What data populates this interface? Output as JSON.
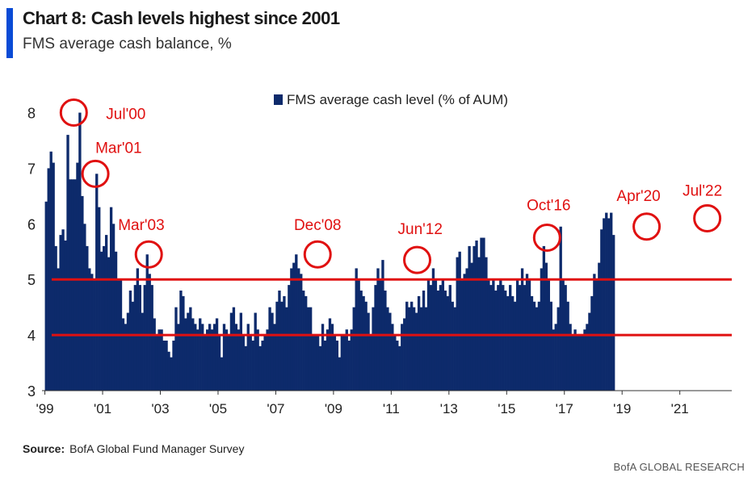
{
  "header": {
    "title": "Chart 8: Cash levels highest since 2001",
    "subtitle": "FMS average cash balance, %"
  },
  "footer": {
    "source_label": "Source:",
    "source_text": "BofA Global Fund Manager Survey",
    "brand": "BofA GLOBAL RESEARCH"
  },
  "colors": {
    "bar": "#0d2a6b",
    "reference_line": "#e01010",
    "annotation": "#e01010"
  },
  "chart_data": {
    "type": "bar",
    "title": "Chart 8: Cash levels highest since 2001",
    "subtitle": "FMS average cash balance, %",
    "legend": {
      "label": "FMS average cash level (% of AUM)",
      "position": "top-center"
    },
    "ylim": [
      3,
      8.4
    ],
    "yticks": [
      3,
      4,
      5,
      6,
      7,
      8
    ],
    "xlim": [
      1998.9,
      2022.8
    ],
    "xticks": [
      {
        "x": 1999,
        "label": "'99"
      },
      {
        "x": 2001,
        "label": "'01"
      },
      {
        "x": 2003,
        "label": "'03"
      },
      {
        "x": 2005,
        "label": "'05"
      },
      {
        "x": 2007,
        "label": "'07"
      },
      {
        "x": 2009,
        "label": "'09"
      },
      {
        "x": 2011,
        "label": "'11"
      },
      {
        "x": 2013,
        "label": "'13"
      },
      {
        "x": 2015,
        "label": "'15"
      },
      {
        "x": 2017,
        "label": "'17"
      },
      {
        "x": 2019,
        "label": "'19"
      },
      {
        "x": 2021,
        "label": "'21"
      }
    ],
    "grid": false,
    "reference_lines": [
      5.0,
      4.0
    ],
    "annotations": [
      {
        "label": "Jul'00",
        "x": 2000.0,
        "y": 8.0
      },
      {
        "label": "Mar'01",
        "x": 2000.75,
        "y": 6.9
      },
      {
        "label": "Mar'03",
        "x": 2002.6,
        "y": 5.45
      },
      {
        "label": "Dec'08",
        "x": 2008.45,
        "y": 5.45
      },
      {
        "label": "Jun'12",
        "x": 2011.9,
        "y": 5.35
      },
      {
        "label": "Oct'16",
        "x": 2016.4,
        "y": 5.75
      },
      {
        "label": "Apr'20",
        "x": 2019.85,
        "y": 5.95
      },
      {
        "label": "Jul'22",
        "x": 2021.95,
        "y": 6.1
      }
    ],
    "series": [
      {
        "x_start": 1999.0,
        "x_step": 0.0833,
        "values": [
          6.4,
          7.0,
          7.3,
          7.1,
          5.6,
          5.2,
          5.8,
          5.9,
          5.7,
          7.6,
          6.8,
          6.8,
          6.8,
          7.1,
          8.0,
          6.5,
          6.0,
          5.6,
          5.2,
          5.1,
          5.0,
          6.9,
          6.3,
          5.5,
          5.6,
          5.8,
          5.4,
          6.3,
          6.0,
          5.5,
          5.0,
          5.0,
          4.3,
          4.2,
          4.4,
          4.8,
          4.6,
          4.9,
          5.2,
          4.9,
          4.4,
          4.9,
          5.45,
          5.1,
          4.9,
          4.3,
          4.0,
          4.1,
          4.1,
          3.9,
          3.9,
          3.7,
          3.6,
          3.9,
          4.5,
          4.2,
          4.8,
          4.7,
          4.3,
          4.4,
          4.5,
          4.3,
          4.2,
          4.1,
          4.3,
          4.2,
          4.0,
          4.1,
          4.2,
          4.1,
          4.2,
          4.3,
          4.0,
          3.6,
          4.2,
          4.1,
          4.0,
          4.4,
          4.5,
          4.2,
          4.1,
          4.4,
          4.0,
          3.8,
          4.2,
          4.0,
          3.9,
          4.4,
          4.1,
          3.8,
          3.9,
          4.0,
          4.1,
          4.5,
          4.4,
          4.2,
          4.6,
          4.8,
          4.6,
          4.7,
          4.5,
          4.9,
          5.2,
          5.3,
          5.45,
          5.2,
          5.1,
          4.8,
          4.7,
          4.5,
          4.5,
          4.0,
          4.0,
          4.0,
          3.8,
          4.2,
          3.9,
          4.1,
          4.3,
          4.2,
          4.0,
          3.9,
          3.6,
          4.0,
          4.0,
          4.1,
          3.9,
          4.1,
          4.5,
          5.2,
          5.0,
          4.8,
          4.7,
          4.6,
          4.4,
          4.0,
          4.5,
          4.9,
          5.2,
          5.0,
          5.35,
          4.8,
          4.5,
          4.4,
          4.2,
          4.0,
          3.9,
          3.8,
          4.2,
          4.3,
          4.6,
          4.5,
          4.6,
          4.5,
          4.4,
          4.7,
          4.5,
          4.8,
          4.5,
          5.0,
          4.9,
          5.2,
          5.0,
          4.8,
          4.9,
          5.0,
          4.8,
          4.7,
          4.9,
          4.6,
          4.5,
          5.4,
          5.5,
          5.0,
          5.1,
          5.2,
          5.6,
          5.3,
          5.6,
          5.7,
          5.4,
          5.75,
          5.75,
          5.4,
          5.0,
          4.9,
          5.0,
          4.8,
          4.9,
          5.0,
          4.9,
          4.8,
          4.7,
          4.9,
          4.7,
          4.6,
          5.0,
          4.9,
          5.2,
          4.9,
          5.1,
          5.0,
          4.7,
          4.6,
          4.5,
          4.6,
          5.2,
          5.6,
          5.3,
          5.0,
          4.6,
          4.1,
          4.2,
          4.5,
          5.95,
          5.0,
          4.9,
          4.6,
          4.2,
          4.0,
          4.1,
          4.0,
          4.0,
          4.0,
          4.1,
          4.2,
          4.4,
          4.7,
          5.1,
          5.0,
          5.3,
          5.9,
          6.1,
          6.2,
          6.1,
          6.2,
          5.8
        ]
      }
    ]
  }
}
